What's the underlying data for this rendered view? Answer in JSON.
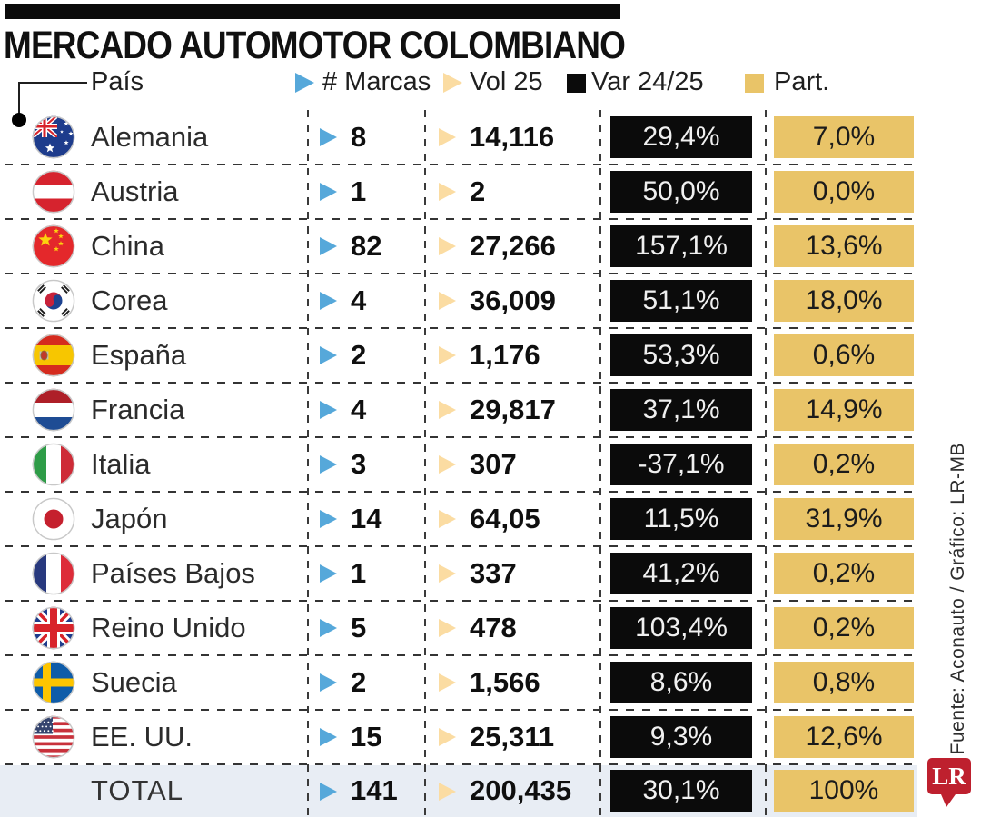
{
  "title": "MERCADO AUTOMOTOR COLOMBIANO",
  "header": {
    "country_label": "País",
    "columns": [
      {
        "label": "# Marcas",
        "marker": "triangle-icon",
        "color": "#56A8DA"
      },
      {
        "label": "Vol 25",
        "marker": "triangle-icon",
        "color": "#FBDCA2"
      },
      {
        "label": "Var 24/25",
        "marker": "square-icon",
        "color": "#0B0B0B"
      },
      {
        "label": "Part.",
        "marker": "square-icon",
        "color": "#E9C468"
      }
    ]
  },
  "rows": [
    {
      "country": "Alemania",
      "flag": "australia",
      "marcas": "8",
      "vol": "14,116",
      "var": "29,4%",
      "part": "7,0%"
    },
    {
      "country": "Austria",
      "flag": "austria",
      "marcas": "1",
      "vol": "2",
      "var": "50,0%",
      "part": "0,0%"
    },
    {
      "country": "China",
      "flag": "china",
      "marcas": "82",
      "vol": "27,266",
      "var": "157,1%",
      "part": "13,6%"
    },
    {
      "country": "Corea",
      "flag": "south-korea",
      "marcas": "4",
      "vol": "36,009",
      "var": "51,1%",
      "part": "18,0%"
    },
    {
      "country": "España",
      "flag": "spain",
      "marcas": "2",
      "vol": "1,176",
      "var": "53,3%",
      "part": "0,6%"
    },
    {
      "country": "Francia",
      "flag": "netherlands",
      "marcas": "4",
      "vol": "29,817",
      "var": "37,1%",
      "part": "14,9%"
    },
    {
      "country": "Italia",
      "flag": "italy",
      "marcas": "3",
      "vol": "307",
      "var": "-37,1%",
      "part": "0,2%"
    },
    {
      "country": "Japón",
      "flag": "japan",
      "marcas": "14",
      "vol": "64,05",
      "var": "11,5%",
      "part": "31,9%"
    },
    {
      "country": "Países Bajos",
      "flag": "france",
      "marcas": "1",
      "vol": "337",
      "var": "41,2%",
      "part": "0,2%"
    },
    {
      "country": "Reino Unido",
      "flag": "united-kingdom",
      "marcas": "5",
      "vol": "478",
      "var": "103,4%",
      "part": "0,2%"
    },
    {
      "country": "Suecia",
      "flag": "sweden",
      "marcas": "2",
      "vol": "1,566",
      "var": "8,6%",
      "part": "0,8%"
    },
    {
      "country": "EE. UU.",
      "flag": "usa",
      "marcas": "15",
      "vol": "25,311",
      "var": "9,3%",
      "part": "12,6%"
    }
  ],
  "total_row": {
    "label": "TOTAL",
    "marcas": "141",
    "vol": "200,435",
    "var": "30,1%",
    "part": "100%"
  },
  "source": "Fuente: Aconauto / Gráfico: LR-MB",
  "logo_text": "LR",
  "colors": {
    "marcas_triangle": "#56A8DA",
    "vol_triangle": "#FBDCA2",
    "var_box": "#0B0B0B",
    "part_box": "#E9C468",
    "total_row_bg": "#E8EDF4",
    "logo_red": "#BE202E",
    "top_bar": "#0B0B0B"
  },
  "chart_data": {
    "type": "table",
    "title": "MERCADO AUTOMOTOR COLOMBIANO",
    "columns": [
      "País",
      "# Marcas",
      "Vol 25",
      "Var 24/25",
      "Part."
    ],
    "rows": [
      [
        "Alemania",
        8,
        "14,116",
        "29,4%",
        "7,0%"
      ],
      [
        "Austria",
        1,
        "2",
        "50,0%",
        "0,0%"
      ],
      [
        "China",
        82,
        "27,266",
        "157,1%",
        "13,6%"
      ],
      [
        "Corea",
        4,
        "36,009",
        "51,1%",
        "18,0%"
      ],
      [
        "España",
        2,
        "1,176",
        "53,3%",
        "0,6%"
      ],
      [
        "Francia",
        4,
        "29,817",
        "37,1%",
        "14,9%"
      ],
      [
        "Italia",
        3,
        "307",
        "-37,1%",
        "0,2%"
      ],
      [
        "Japón",
        14,
        "64,05",
        "11,5%",
        "31,9%"
      ],
      [
        "Países Bajos",
        1,
        "337",
        "41,2%",
        "0,2%"
      ],
      [
        "Reino Unido",
        5,
        "478",
        "103,4%",
        "0,2%"
      ],
      [
        "Suecia",
        2,
        "1,566",
        "8,6%",
        "0,8%"
      ],
      [
        "EE. UU.",
        15,
        "25,311",
        "9,3%",
        "12,6%"
      ],
      [
        "TOTAL",
        141,
        "200,435",
        "30,1%",
        "100%"
      ]
    ]
  }
}
